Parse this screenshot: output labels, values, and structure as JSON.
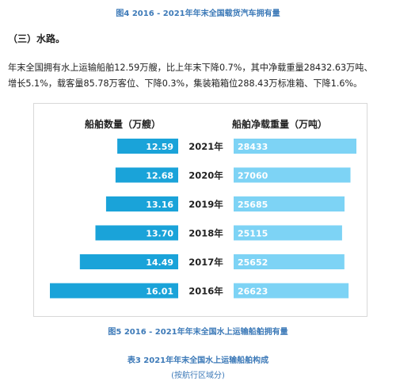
{
  "figure4_caption": "图4  2016 - 2021年年末全国载货汽车拥有量",
  "section_heading": "（三）水路。",
  "paragraph_lines": [
    "年末全国拥有水上运输船舶12.59万艘，比上年末下降0.7%，其中净载重量28432.63万吨、",
    "增长5.1%，载客量85.78万客位、下降0.3%，集装箱箱位288.43万标准箱、下降1.6%。"
  ],
  "figure5_caption": "图5  2016 - 2021年年末全国水上运输船舶拥有量",
  "table3_caption": "表3  2021年年末全国水上运输船舶构成",
  "table3_subcaption": "(按航行区域分)",
  "colors": {
    "left_bar": "#1aa3d9",
    "right_bar": "#7dd3f5",
    "caption_blue": "#3d7ab8"
  },
  "chart_data": {
    "type": "bar",
    "left_label": "船舶数量（万艘）",
    "right_label": "船舶净载重量（万吨）",
    "categories": [
      "2021年",
      "2020年",
      "2019年",
      "2018年",
      "2017年",
      "2016年"
    ],
    "series": [
      {
        "name": "船舶数量（万艘）",
        "values": [
          "12.59",
          "12.68",
          "13.16",
          "13.70",
          "14.49",
          "16.01"
        ]
      },
      {
        "name": "船舶净载重量（万吨）",
        "values": [
          "28433",
          "27060",
          "25685",
          "25115",
          "25652",
          "26623"
        ]
      }
    ],
    "left_scale_min": 9.5,
    "left_scale_max": 16.01,
    "right_scale_max": 28433
  }
}
